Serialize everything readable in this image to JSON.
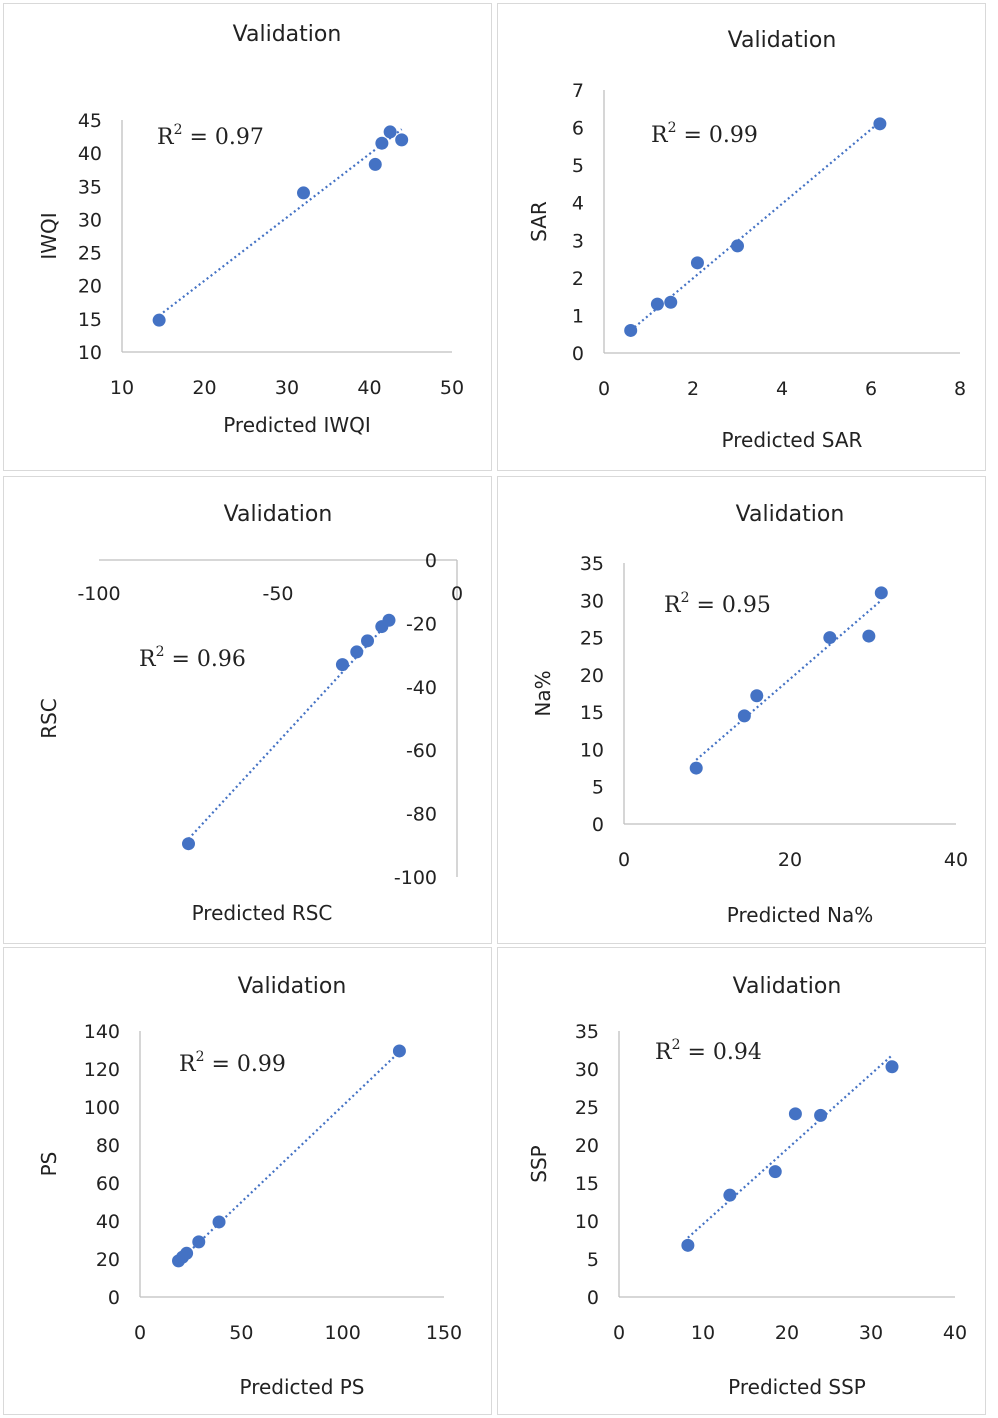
{
  "chart_data": [
    {
      "type": "scatter",
      "title": "Validation",
      "xlabel": "Predicted IWQI",
      "ylabel": "IWQI",
      "annotation": {
        "r2_label": "R",
        "r2_sup": "2",
        "r2_value": " = 0.97"
      },
      "xlim": [
        10,
        50
      ],
      "ylim": [
        10,
        45
      ],
      "xticks": [
        10,
        20,
        30,
        40,
        50
      ],
      "yticks": [
        10,
        15,
        20,
        25,
        30,
        35,
        40,
        45
      ],
      "x_axis_at": 10,
      "points": [
        [
          14.5,
          14.8
        ],
        [
          32,
          34
        ],
        [
          40.7,
          38.3
        ],
        [
          41.5,
          41.5
        ],
        [
          42.5,
          43.2
        ],
        [
          43.9,
          42
        ]
      ],
      "trendline": [
        [
          14.5,
          15.5
        ],
        [
          43.9,
          43.6
        ]
      ],
      "grid": false
    },
    {
      "type": "scatter",
      "title": "Validation",
      "xlabel": "Predicted SAR",
      "ylabel": "SAR",
      "annotation": {
        "r2_label": "R",
        "r2_sup": "2",
        "r2_value": " = 0.99"
      },
      "xlim": [
        0,
        8
      ],
      "ylim": [
        0,
        7
      ],
      "xticks": [
        0,
        2,
        4,
        6,
        8
      ],
      "yticks": [
        0,
        1,
        2,
        3,
        4,
        5,
        6,
        7
      ],
      "x_axis_at": 0,
      "points": [
        [
          0.6,
          0.6
        ],
        [
          1.2,
          1.3
        ],
        [
          1.5,
          1.35
        ],
        [
          2.1,
          2.4
        ],
        [
          3,
          2.85
        ],
        [
          6.2,
          6.1
        ]
      ],
      "trendline": [
        [
          0.6,
          0.6
        ],
        [
          6.2,
          6.15
        ]
      ],
      "grid": false
    },
    {
      "type": "scatter",
      "title": "Validation",
      "xlabel": "Predicted RSC",
      "ylabel": "RSC",
      "annotation": {
        "r2_label": "R",
        "r2_sup": "2",
        "r2_value": " = 0.96"
      },
      "xlim": [
        -100,
        0
      ],
      "ylim": [
        -100,
        0
      ],
      "xticks": [
        -100,
        -50,
        0
      ],
      "yticks": [
        0,
        -20,
        -40,
        -60,
        -80,
        -100
      ],
      "x_axis_at": 0,
      "points": [
        [
          -75,
          -89.5
        ],
        [
          -32,
          -33
        ],
        [
          -28,
          -29
        ],
        [
          -25,
          -25.5
        ],
        [
          -21,
          -21
        ],
        [
          -19,
          -19
        ]
      ],
      "trendline": [
        [
          -75,
          -88
        ],
        [
          -19,
          -19.5
        ]
      ],
      "grid": false
    },
    {
      "type": "scatter",
      "title": "Validation",
      "xlabel": "Predicted Na%",
      "ylabel": "Na%",
      "annotation": {
        "r2_label": "R",
        "r2_sup": "2",
        "r2_value": " = 0.95"
      },
      "xlim": [
        0,
        40
      ],
      "ylim": [
        0,
        35
      ],
      "xticks": [
        0,
        20,
        40
      ],
      "yticks": [
        0,
        5,
        10,
        15,
        20,
        25,
        30,
        35
      ],
      "x_axis_at": 0,
      "points": [
        [
          8.7,
          7.5
        ],
        [
          14.5,
          14.5
        ],
        [
          16,
          17.2
        ],
        [
          24.8,
          25
        ],
        [
          29.5,
          25.2
        ],
        [
          31,
          31
        ]
      ],
      "trendline": [
        [
          8.7,
          8.6
        ],
        [
          31,
          30
        ]
      ],
      "grid": false
    },
    {
      "type": "scatter",
      "title": "Validation",
      "xlabel": "Predicted PS",
      "ylabel": "PS",
      "annotation": {
        "r2_label": "R",
        "r2_sup": "2",
        "r2_value": " = 0.99"
      },
      "xlim": [
        0,
        150
      ],
      "ylim": [
        0,
        140
      ],
      "xticks": [
        0,
        50,
        100,
        150
      ],
      "yticks": [
        0,
        20,
        40,
        60,
        80,
        100,
        120,
        140
      ],
      "x_axis_at": 0,
      "points": [
        [
          19,
          19
        ],
        [
          21,
          21
        ],
        [
          23,
          23
        ],
        [
          29,
          29
        ],
        [
          39,
          39.5
        ],
        [
          128,
          129.5
        ]
      ],
      "trendline": [
        [
          19,
          18.5
        ],
        [
          128,
          129
        ]
      ],
      "grid": false
    },
    {
      "type": "scatter",
      "title": "Validation",
      "xlabel": "Predicted SSP",
      "ylabel": "SSP",
      "annotation": {
        "r2_label": "R",
        "r2_sup": "2",
        "r2_value": " = 0.94"
      },
      "xlim": [
        0,
        40
      ],
      "ylim": [
        0,
        35
      ],
      "xticks": [
        0,
        10,
        20,
        30,
        40
      ],
      "yticks": [
        0,
        5,
        10,
        15,
        20,
        25,
        30,
        35
      ],
      "x_axis_at": 0,
      "points": [
        [
          8.2,
          6.8
        ],
        [
          13.2,
          13.4
        ],
        [
          18.6,
          16.5
        ],
        [
          21,
          24.1
        ],
        [
          24,
          23.9
        ],
        [
          32.5,
          30.3
        ]
      ],
      "trendline": [
        [
          8.2,
          7.8
        ],
        [
          32.5,
          31.8
        ]
      ],
      "grid": false
    }
  ]
}
